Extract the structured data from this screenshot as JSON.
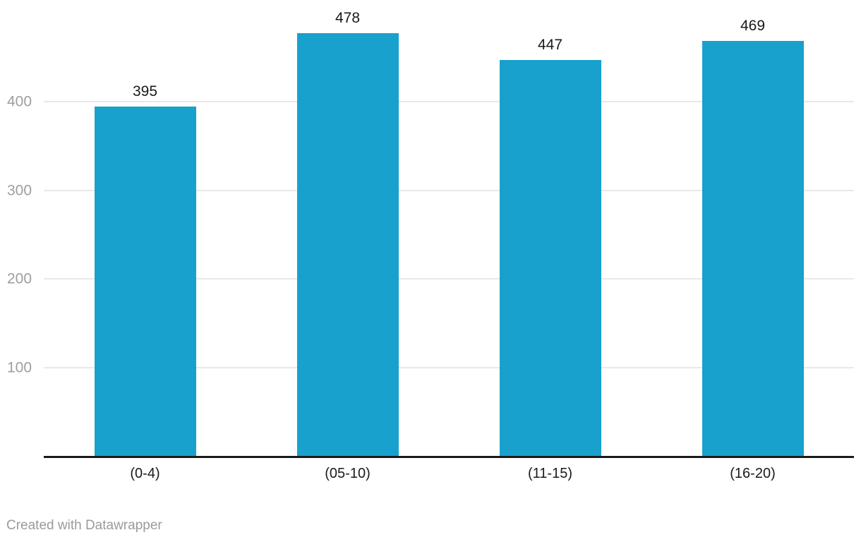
{
  "chart_data": {
    "type": "bar",
    "categories": [
      "(0-4)",
      "(05-10)",
      "(11-15)",
      "(16-20)"
    ],
    "values": [
      395,
      478,
      447,
      469
    ],
    "title": "",
    "xlabel": "",
    "ylabel": "",
    "yticks": [
      100,
      200,
      300,
      400
    ],
    "ylim": [
      0,
      515
    ],
    "grid": "horizontal",
    "legend": "none",
    "value_labels_shown": true
  },
  "footer": {
    "credit": "Created with Datawrapper"
  },
  "colors": {
    "bar": "#18a1cd",
    "axis_line": "#1a1a1a",
    "gridline": "#e8e8e8",
    "tick_label": "#9e9e9e",
    "category_label": "#1a1a1a",
    "value_label": "#1a1a1a",
    "credit": "#9a9a9a",
    "background": "#ffffff"
  }
}
